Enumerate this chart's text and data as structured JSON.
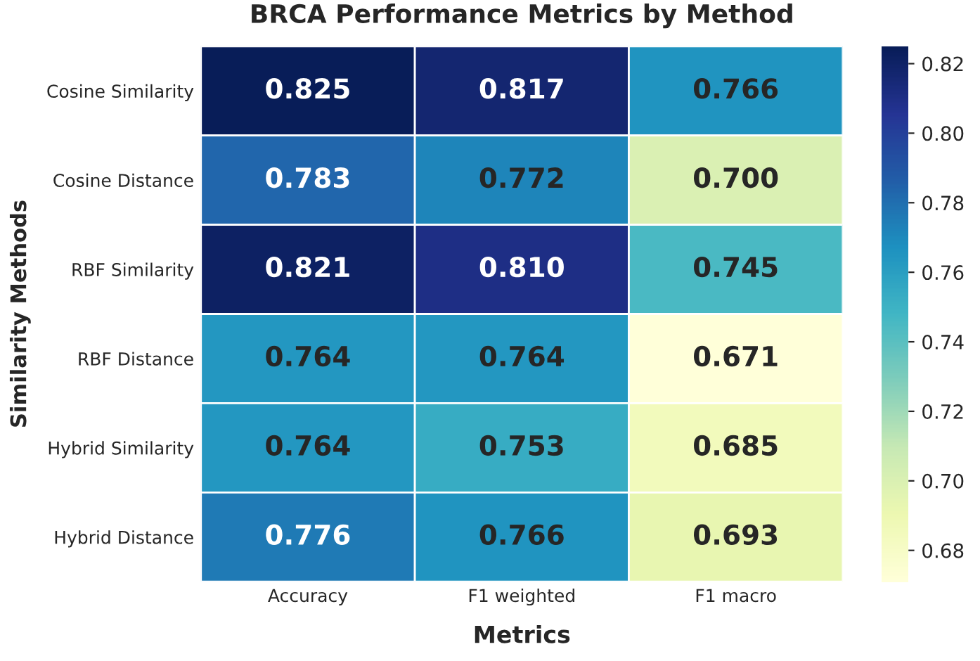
{
  "chart_data": {
    "type": "heatmap",
    "title": "BRCA Performance Metrics by Method",
    "xlabel": "Metrics",
    "ylabel": "Similarity Methods",
    "categories": [
      "Accuracy",
      "F1 weighted",
      "F1 macro"
    ],
    "y_categories": [
      "Cosine Similarity",
      "Cosine Distance",
      "RBF Similarity",
      "RBF Distance",
      "Hybrid Similarity",
      "Hybrid Distance"
    ],
    "cells": [
      [
        0.825,
        0.817,
        0.766
      ],
      [
        0.783,
        0.772,
        0.7
      ],
      [
        0.821,
        0.81,
        0.745
      ],
      [
        0.764,
        0.764,
        0.671
      ],
      [
        0.764,
        0.753,
        0.685
      ],
      [
        0.776,
        0.766,
        0.693
      ]
    ],
    "clim": [
      0.671,
      0.825
    ],
    "cticks": [
      {
        "value": 0.68,
        "label": "0.68"
      },
      {
        "value": 0.7,
        "label": "0.70"
      },
      {
        "value": 0.72,
        "label": "0.72"
      },
      {
        "value": 0.74,
        "label": "0.74"
      },
      {
        "value": 0.76,
        "label": "0.76"
      },
      {
        "value": 0.78,
        "label": "0.78"
      },
      {
        "value": 0.8,
        "label": "0.80"
      },
      {
        "value": 0.82,
        "label": "0.82"
      }
    ],
    "cell_labels": [
      [
        "0.825",
        "0.817",
        "0.766"
      ],
      [
        "0.783",
        "0.772",
        "0.700"
      ],
      [
        "0.821",
        "0.810",
        "0.745"
      ],
      [
        "0.764",
        "0.764",
        "0.671"
      ],
      [
        "0.764",
        "0.753",
        "0.685"
      ],
      [
        "0.776",
        "0.766",
        "0.693"
      ]
    ],
    "data_labels": true
  }
}
